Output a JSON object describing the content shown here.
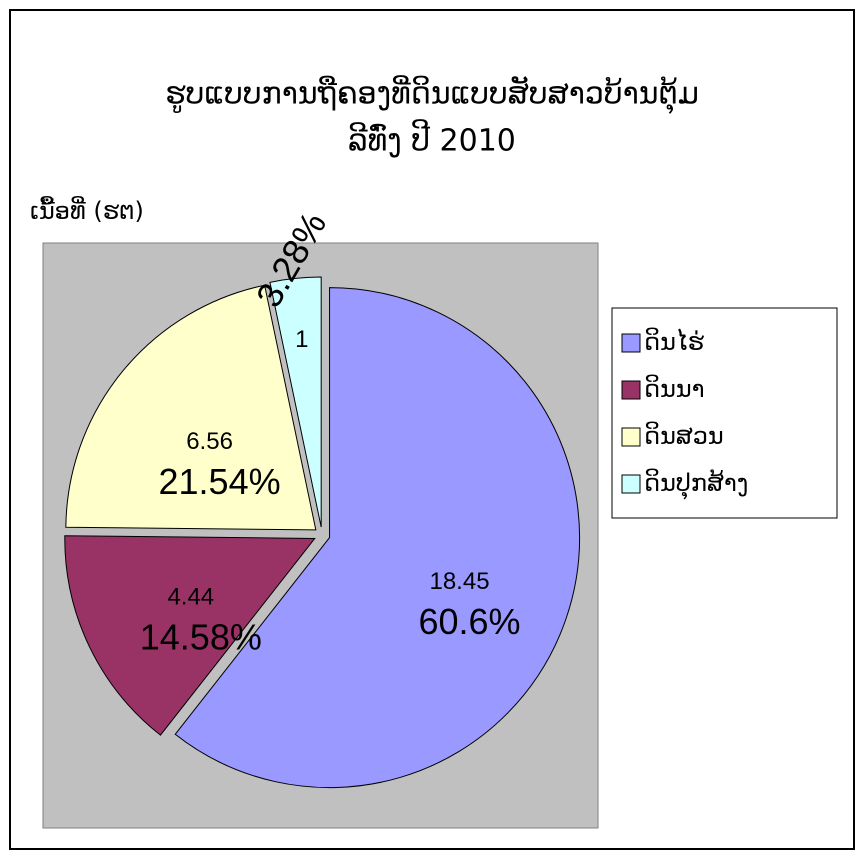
{
  "chart_data": {
    "type": "pie",
    "title": "ຮູບແບບການຖືຄອງທີ່ດິນແບບສັບສາວບ້ານຕຸ້ມ",
    "subtitle": "ລີທົ່ງ ປີ 2010",
    "ylabel": "ເນື້ອທີ່ (ຮຕ)",
    "categories": [
      "ດິນໄຮ່",
      "ດິນນາ",
      "ດິນສວນ",
      "ດິນປຸກສ້າງ"
    ],
    "values": [
      18.45,
      4.44,
      6.56,
      1
    ],
    "percent_labels": [
      "60.6%",
      "14.58%",
      "21.54%",
      "3.28%"
    ],
    "colors": [
      "#9999ff",
      "#993366",
      "#ffffcc",
      "#ccffff"
    ],
    "legend": "right"
  }
}
